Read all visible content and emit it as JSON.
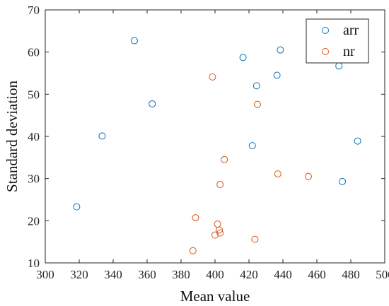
{
  "chart_data": {
    "type": "scatter",
    "xlabel": "Mean value",
    "ylabel": "Standard deviation",
    "xlim": [
      300,
      500
    ],
    "ylim": [
      10,
      70
    ],
    "xticks": [
      300,
      320,
      340,
      360,
      380,
      400,
      420,
      440,
      460,
      480,
      500
    ],
    "yticks": [
      10,
      20,
      30,
      40,
      50,
      60,
      70
    ],
    "grid": false,
    "legend_position": "top-right",
    "series": [
      {
        "name": "arr",
        "color": "#0072BD",
        "marker": "open-circle",
        "points": [
          {
            "x": 318.5,
            "y": 23.3
          },
          {
            "x": 333.5,
            "y": 40.1
          },
          {
            "x": 352.5,
            "y": 62.7
          },
          {
            "x": 363.0,
            "y": 47.7
          },
          {
            "x": 416.5,
            "y": 58.7
          },
          {
            "x": 422.0,
            "y": 37.8
          },
          {
            "x": 424.5,
            "y": 52.0
          },
          {
            "x": 436.5,
            "y": 54.5
          },
          {
            "x": 438.5,
            "y": 60.5
          },
          {
            "x": 473.0,
            "y": 56.7
          },
          {
            "x": 475.0,
            "y": 29.3
          },
          {
            "x": 484.0,
            "y": 38.9
          }
        ]
      },
      {
        "name": "nr",
        "color": "#D95319",
        "marker": "open-circle",
        "points": [
          {
            "x": 387.0,
            "y": 12.9
          },
          {
            "x": 388.5,
            "y": 20.7
          },
          {
            "x": 398.5,
            "y": 54.1
          },
          {
            "x": 400.0,
            "y": 16.6
          },
          {
            "x": 401.5,
            "y": 19.2
          },
          {
            "x": 402.5,
            "y": 17.8
          },
          {
            "x": 403.0,
            "y": 17.1
          },
          {
            "x": 403.0,
            "y": 28.6
          },
          {
            "x": 405.5,
            "y": 34.5
          },
          {
            "x": 423.5,
            "y": 15.6
          },
          {
            "x": 425.0,
            "y": 47.6
          },
          {
            "x": 437.0,
            "y": 31.1
          },
          {
            "x": 455.0,
            "y": 30.5
          }
        ]
      }
    ]
  }
}
